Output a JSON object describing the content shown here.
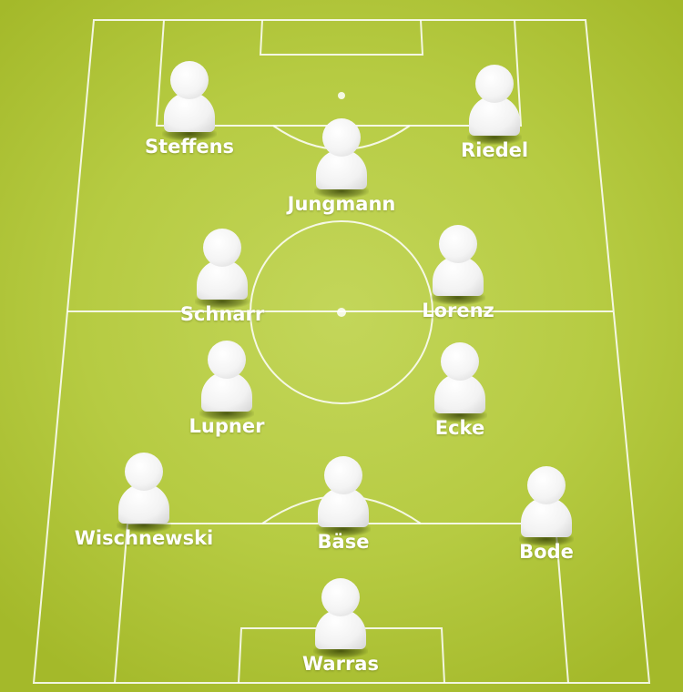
{
  "colors": {
    "pitch": "#b6cb42",
    "lines": "#ffffff",
    "pawn": "#f4f4f4"
  },
  "icon": "player-pawn-icon",
  "players": [
    {
      "name": "Steffens"
    },
    {
      "name": "Jungmann"
    },
    {
      "name": "Riedel"
    },
    {
      "name": "Schnarr"
    },
    {
      "name": "Lorenz"
    },
    {
      "name": "Lupner"
    },
    {
      "name": "Ecke"
    },
    {
      "name": "Wischnewski"
    },
    {
      "name": "Bäse"
    },
    {
      "name": "Bode"
    },
    {
      "name": "Warras"
    }
  ]
}
